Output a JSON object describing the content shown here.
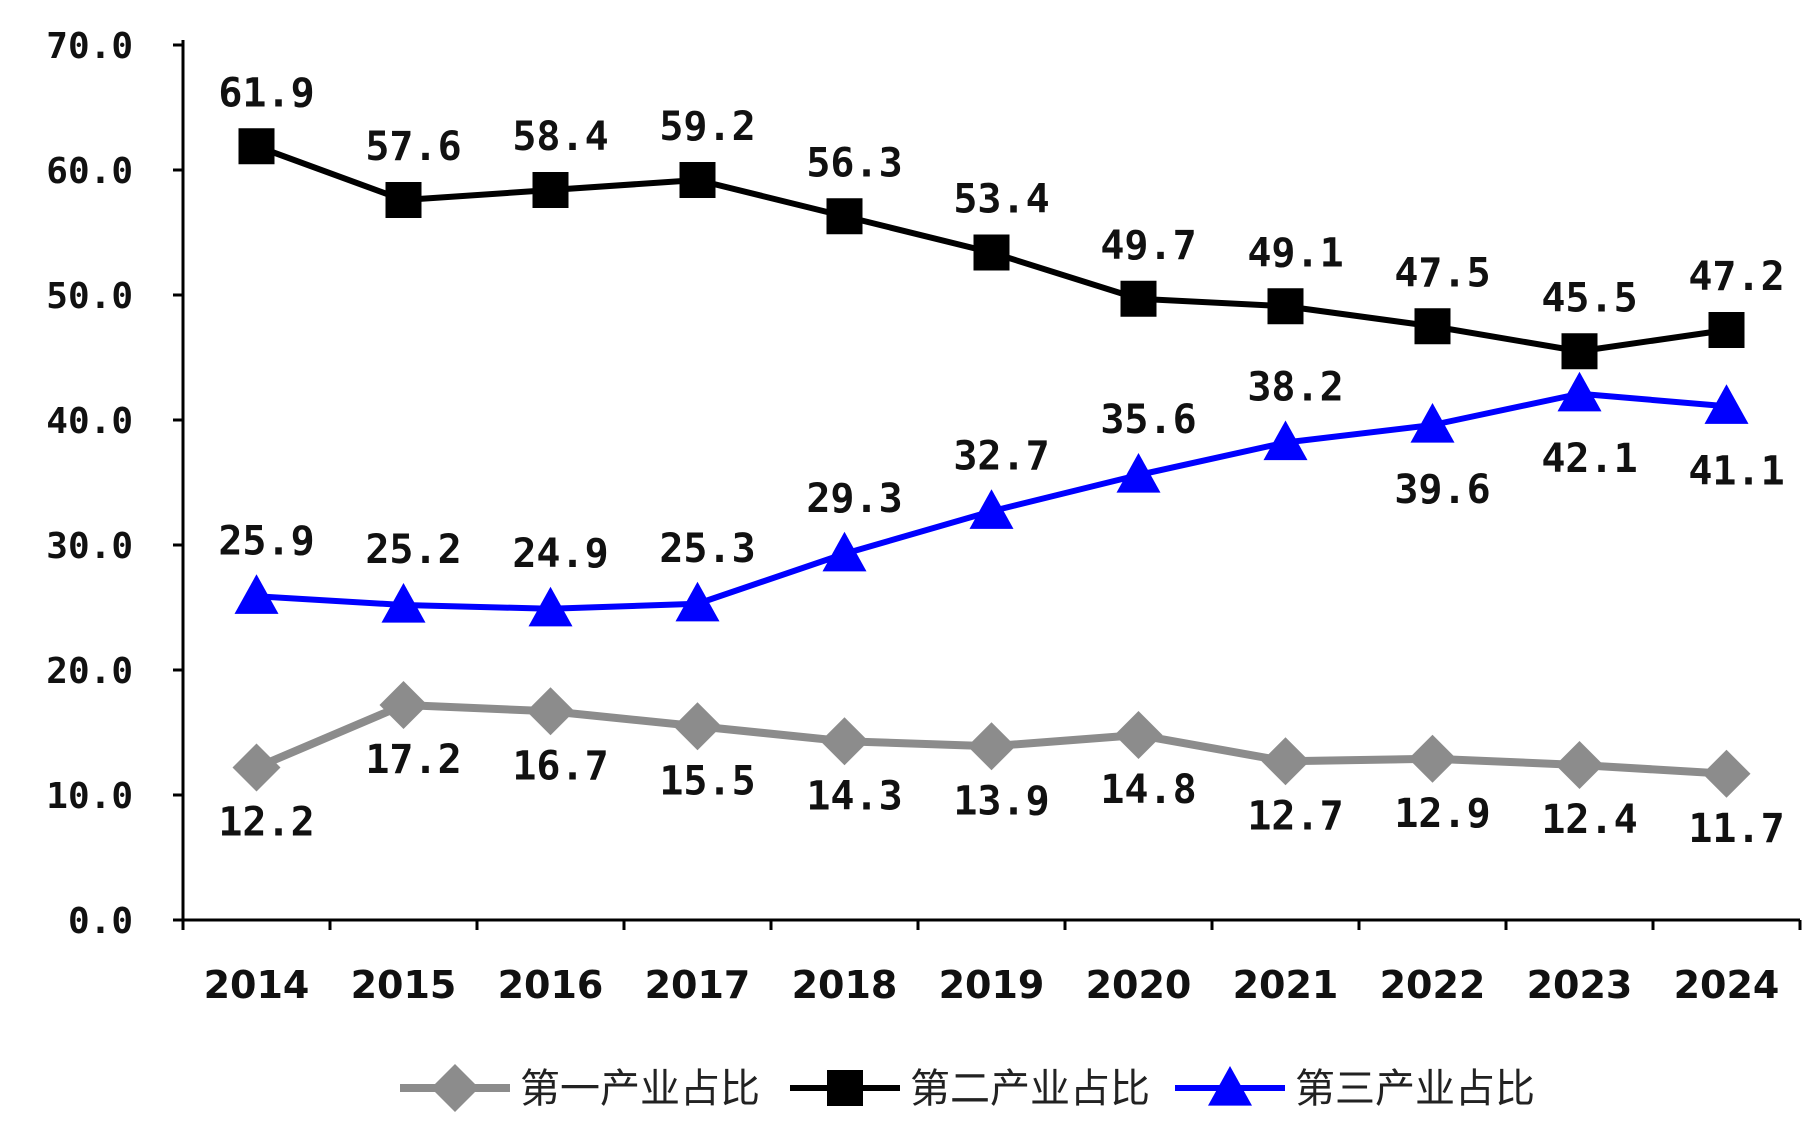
{
  "chart_data": {
    "type": "line",
    "categories": [
      "2014",
      "2015",
      "2016",
      "2017",
      "2018",
      "2019",
      "2020",
      "2021",
      "2022",
      "2023",
      "2024"
    ],
    "ylim": [
      0,
      70
    ],
    "yticks": [
      "0.0",
      "10.0",
      "20.0",
      "30.0",
      "40.0",
      "50.0",
      "60.0",
      "70.0"
    ],
    "grid": false,
    "legend_position": "bottom",
    "series": [
      {
        "name": "第一产业占比",
        "color": "#8c8c8c",
        "marker": "diamond",
        "values": [
          12.2,
          17.2,
          16.7,
          15.5,
          14.3,
          13.9,
          14.8,
          12.7,
          12.9,
          12.4,
          11.7
        ],
        "labels": [
          "12.2",
          "17.2",
          "16.7",
          "15.5",
          "14.3",
          "13.9",
          "14.8",
          "12.7",
          "12.9",
          "12.4",
          "11.7"
        ],
        "label_side": "below"
      },
      {
        "name": "第二产业占比",
        "color": "#000000",
        "marker": "square",
        "values": [
          61.9,
          57.6,
          58.4,
          59.2,
          56.3,
          53.4,
          49.7,
          49.1,
          47.5,
          45.5,
          47.2
        ],
        "labels": [
          "61.9",
          "57.6",
          "58.4",
          "59.2",
          "56.3",
          "53.4",
          "49.7",
          "49.1",
          "47.5",
          "45.5",
          "47.2"
        ],
        "label_side": "above"
      },
      {
        "name": "第三产业占比",
        "color": "#0000ff",
        "marker": "triangle",
        "values": [
          25.9,
          25.2,
          24.9,
          25.3,
          29.3,
          32.7,
          35.6,
          38.2,
          39.6,
          42.1,
          41.1
        ],
        "labels": [
          "25.9",
          "25.2",
          "24.9",
          "25.3",
          "29.3",
          "32.7",
          "35.6",
          "38.2",
          "39.6",
          "42.1",
          "41.1"
        ],
        "label_side": "mixed"
      }
    ]
  }
}
